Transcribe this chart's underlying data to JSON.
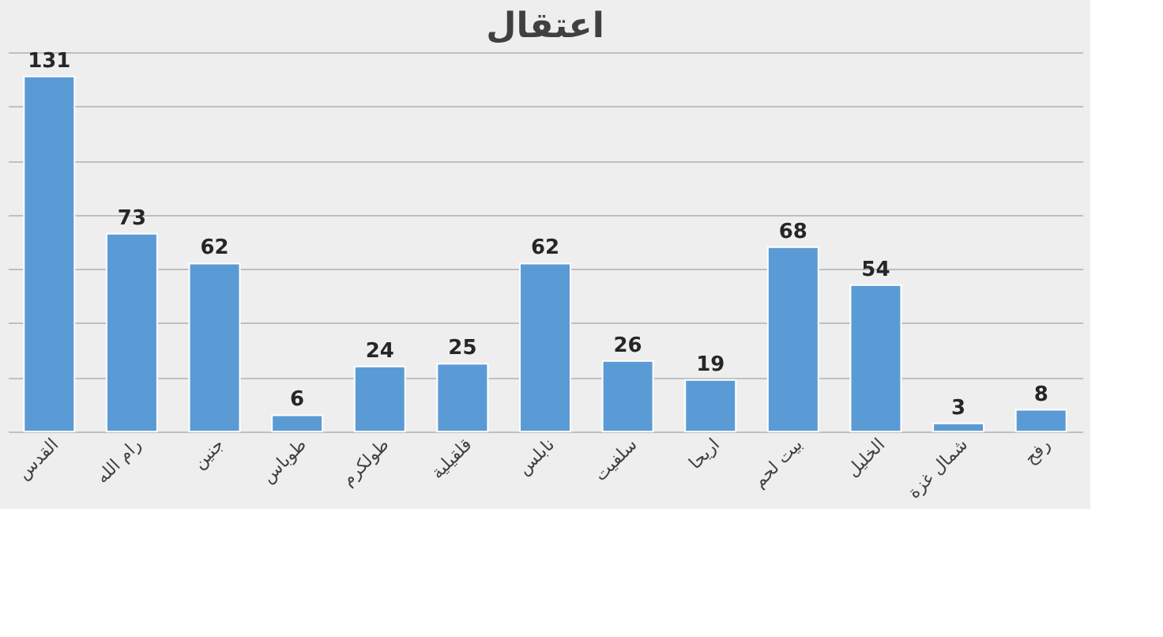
{
  "chart_data": {
    "type": "bar",
    "title": "اعتقال",
    "categories": [
      "القدس",
      "رام الله",
      "جنين",
      "طوباس",
      "طولكرم",
      "قلقيلية",
      "نابلس",
      "سلفيت",
      "اريحا",
      "بيت لحم",
      "الخليل",
      "شمال غزة",
      "رفح"
    ],
    "values": [
      131,
      73,
      62,
      6,
      24,
      25,
      62,
      26,
      19,
      68,
      54,
      3,
      8
    ],
    "color": "#5b9bd5",
    "data_labels": true,
    "grid": "y",
    "tick_labels": "x"
  }
}
